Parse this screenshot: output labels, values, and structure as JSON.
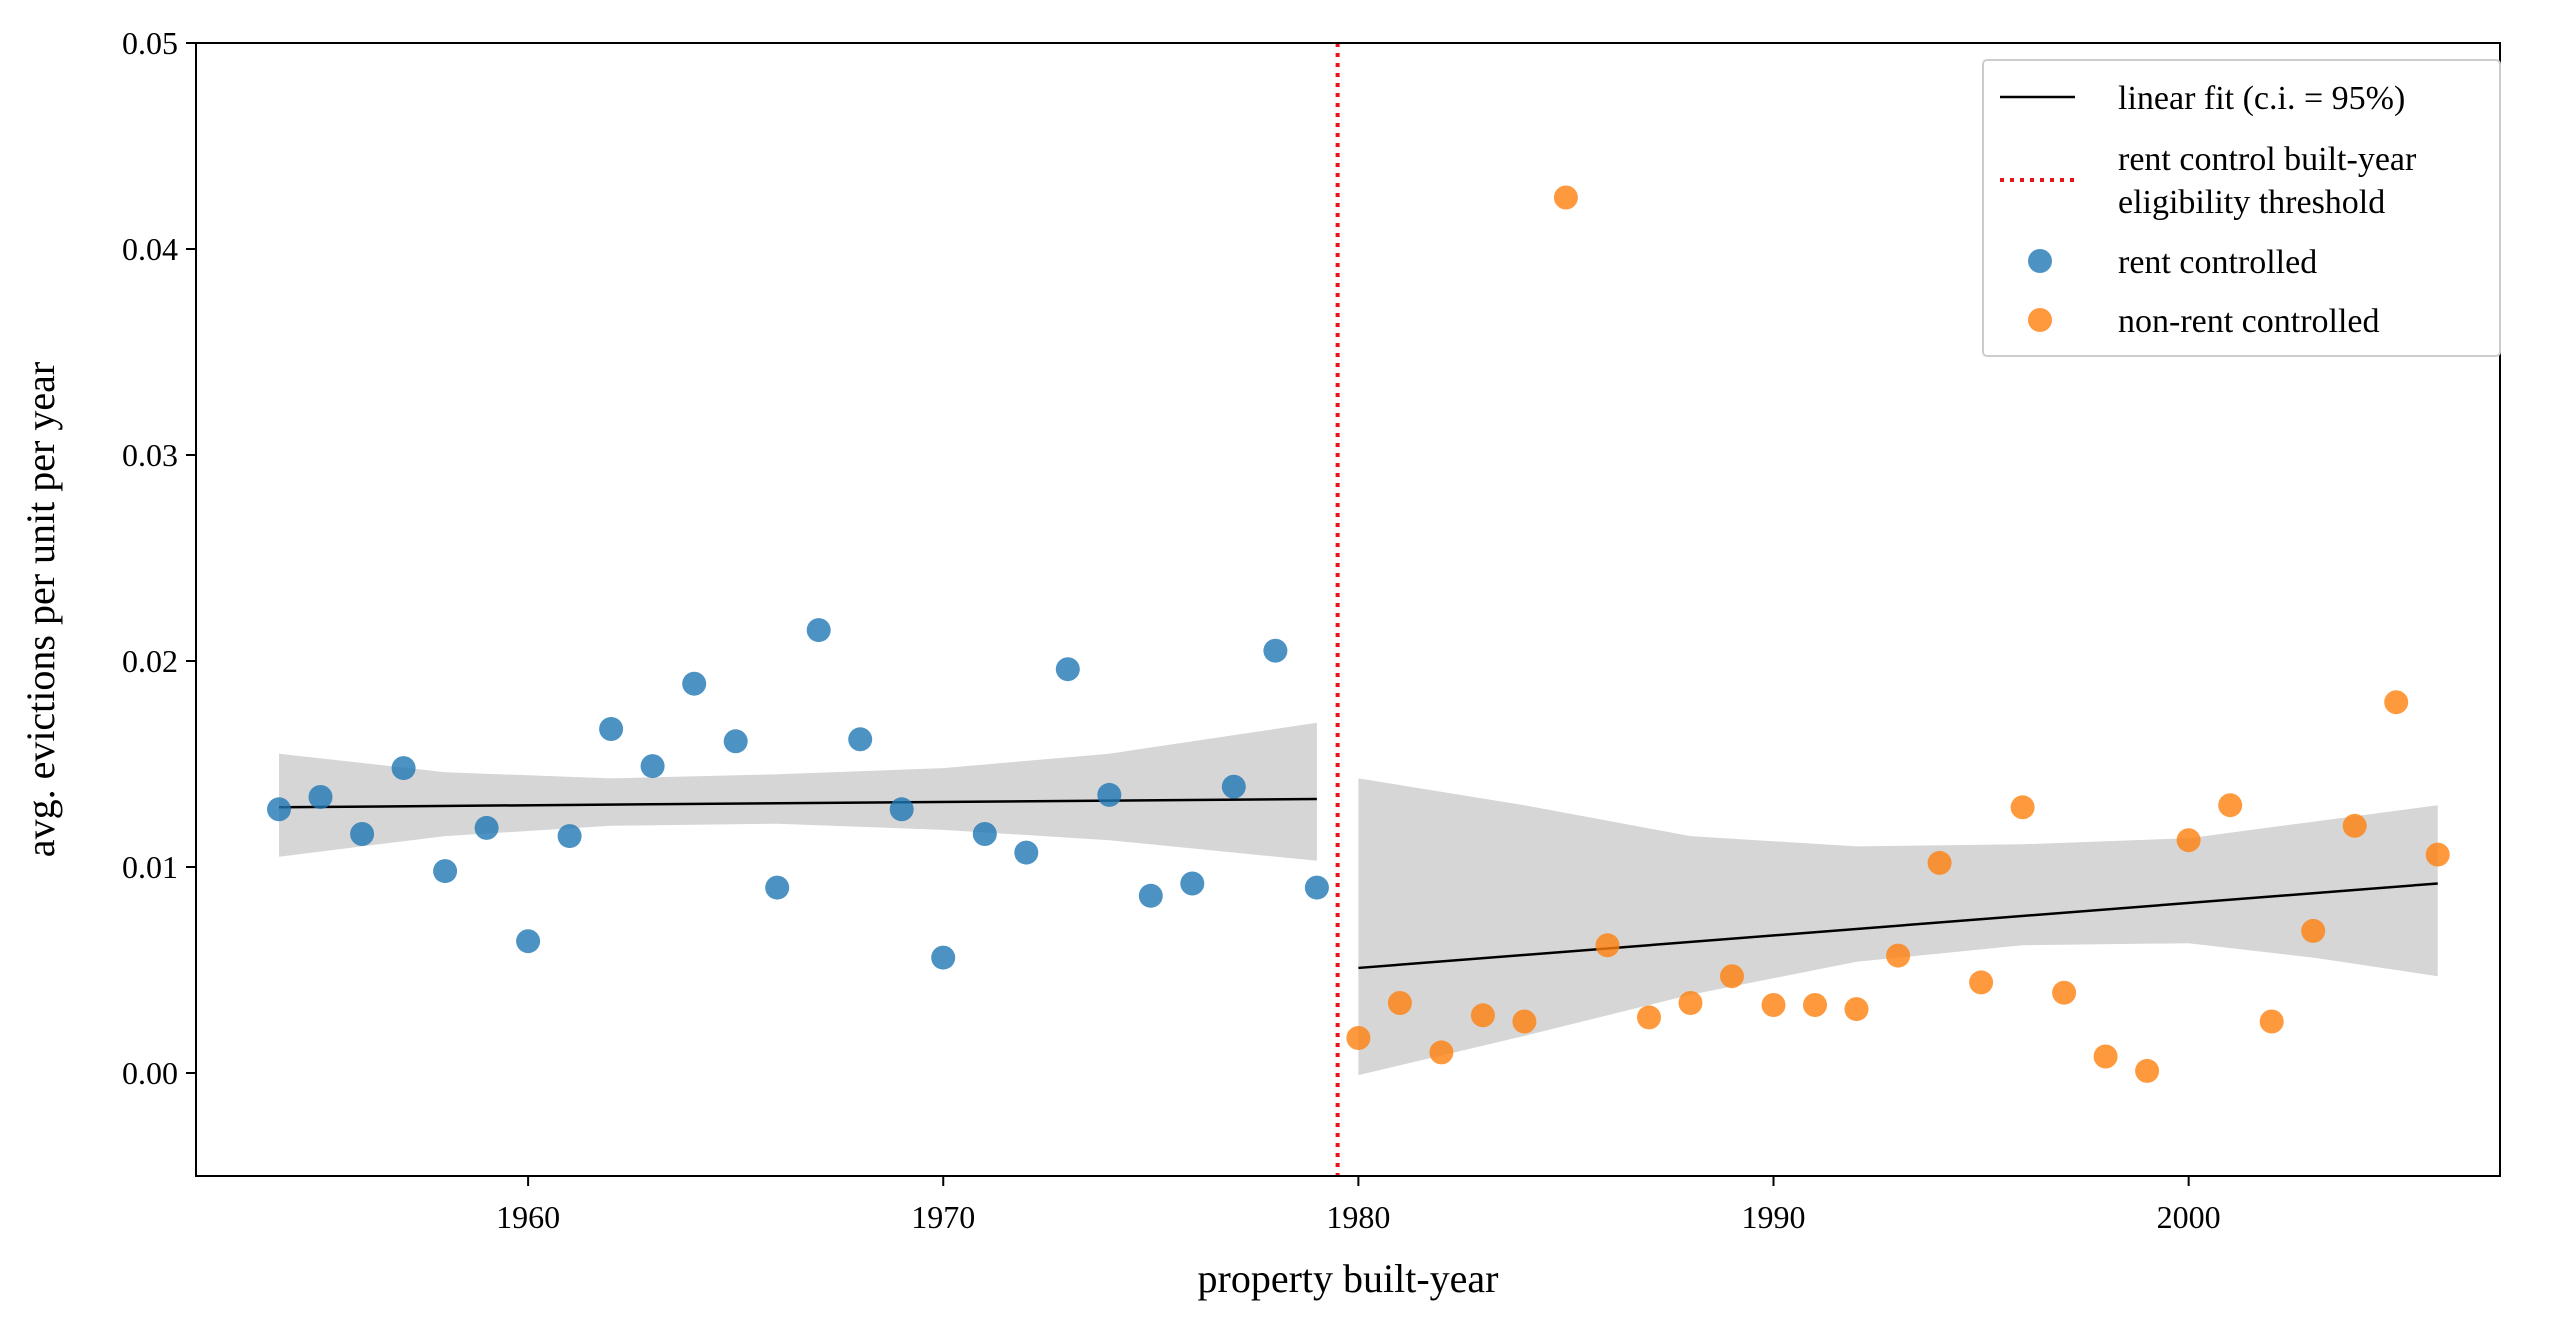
{
  "chart_data": {
    "type": "scatter",
    "title": "",
    "xlabel": "property built-year",
    "ylabel": "avg. evictions per unit per year",
    "xlim": [
      1952,
      2007.5
    ],
    "ylim": [
      -0.005,
      0.05
    ],
    "x_ticks": [
      1960,
      1970,
      1980,
      1990,
      2000
    ],
    "x_tick_labels": [
      "1960",
      "1970",
      "1980",
      "1990",
      "2000"
    ],
    "y_ticks": [
      0.0,
      0.01,
      0.02,
      0.03,
      0.04,
      0.05
    ],
    "y_tick_labels": [
      "0.00",
      "0.01",
      "0.02",
      "0.03",
      "0.04",
      "0.05"
    ],
    "grid": false,
    "legend_position": "top-right",
    "threshold": {
      "x": 1979.5,
      "color": "#e8141c",
      "label": "rent control built-year\n eligibility threshold"
    },
    "series": [
      {
        "name": "rent controlled",
        "color": "#1f77b4",
        "points": [
          [
            1954,
            0.0128
          ],
          [
            1955,
            0.0134
          ],
          [
            1956,
            0.0116
          ],
          [
            1957,
            0.0148
          ],
          [
            1958,
            0.0098
          ],
          [
            1959,
            0.0119
          ],
          [
            1960,
            0.0064
          ],
          [
            1961,
            0.0115
          ],
          [
            1962,
            0.0167
          ],
          [
            1963,
            0.0149
          ],
          [
            1964,
            0.0189
          ],
          [
            1965,
            0.0161
          ],
          [
            1966,
            0.009
          ],
          [
            1967,
            0.0215
          ],
          [
            1968,
            0.0162
          ],
          [
            1969,
            0.0128
          ],
          [
            1970,
            0.0056
          ],
          [
            1971,
            0.0116
          ],
          [
            1972,
            0.0107
          ],
          [
            1973,
            0.0196
          ],
          [
            1974,
            0.0135
          ],
          [
            1975,
            0.0086
          ],
          [
            1976,
            0.0092
          ],
          [
            1977,
            0.0139
          ],
          [
            1978,
            0.0205
          ],
          [
            1979,
            0.009
          ]
        ],
        "fit": {
          "x": [
            1954,
            1979
          ],
          "y": [
            0.0129,
            0.0133
          ]
        },
        "ci_band": {
          "x": [
            1954,
            1958,
            1962,
            1966,
            1970,
            1974,
            1979
          ],
          "lower": [
            0.0105,
            0.0115,
            0.012,
            0.0121,
            0.0118,
            0.0113,
            0.0103
          ],
          "upper": [
            0.0155,
            0.0146,
            0.0143,
            0.0145,
            0.0148,
            0.0155,
            0.017
          ]
        }
      },
      {
        "name": "non-rent controlled",
        "color": "#ff7f0e",
        "points": [
          [
            1980,
            0.0017
          ],
          [
            1981,
            0.0034
          ],
          [
            1982,
            0.001
          ],
          [
            1983,
            0.0028
          ],
          [
            1984,
            0.0025
          ],
          [
            1985,
            0.0425
          ],
          [
            1986,
            0.0062
          ],
          [
            1987,
            0.0027
          ],
          [
            1988,
            0.0034
          ],
          [
            1989,
            0.0047
          ],
          [
            1990,
            0.0033
          ],
          [
            1991,
            0.0033
          ],
          [
            1992,
            0.0031
          ],
          [
            1993,
            0.0057
          ],
          [
            1994,
            0.0102
          ],
          [
            1995,
            0.0044
          ],
          [
            1996,
            0.0129
          ],
          [
            1997,
            0.0039
          ],
          [
            1998,
            0.0008
          ],
          [
            1999,
            0.0001
          ],
          [
            2000,
            0.0113
          ],
          [
            2001,
            0.013
          ],
          [
            2002,
            0.0025
          ],
          [
            2003,
            0.0069
          ],
          [
            2004,
            0.012
          ],
          [
            2005,
            0.018
          ],
          [
            2006,
            0.0106
          ]
        ],
        "fit": {
          "x": [
            1980,
            2006
          ],
          "y": [
            0.0051,
            0.0092
          ]
        },
        "ci_band": {
          "x": [
            1980,
            1984,
            1988,
            1992,
            1996,
            2000,
            2003,
            2006
          ],
          "lower": [
            -0.0001,
            0.0018,
            0.0038,
            0.0054,
            0.0062,
            0.0063,
            0.0056,
            0.0047
          ],
          "upper": [
            0.0143,
            0.013,
            0.0115,
            0.011,
            0.0111,
            0.0114,
            0.0122,
            0.013
          ]
        }
      }
    ],
    "legend": {
      "fit_label": "linear fit (c.i. = 95%)"
    }
  }
}
